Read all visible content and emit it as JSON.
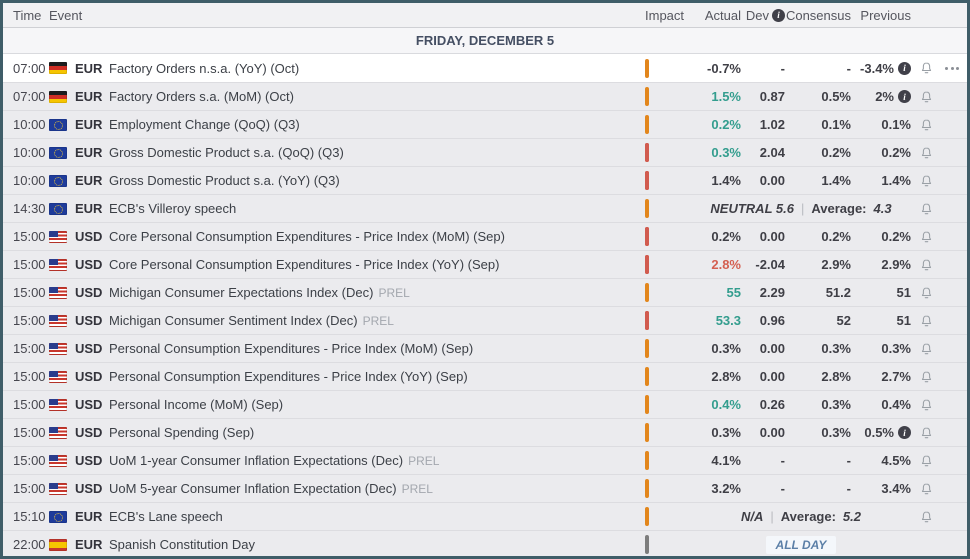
{
  "header": {
    "time": "Time",
    "event": "Event",
    "impact": "Impact",
    "actual": "Actual",
    "dev": "Dev",
    "consensus": "Consensus",
    "previous": "Previous"
  },
  "date_header": "FRIDAY, DECEMBER 5",
  "colors": {
    "impact_medium": "#e2861c",
    "impact_high": "#d15b4f",
    "actual_positive": "#339d8e",
    "actual_negative": "#d45f51",
    "frame_border": "#3f5d68"
  },
  "rows": [
    {
      "time": "07:00",
      "flag": "de",
      "currency": "EUR",
      "event": "Factory Orders n.s.a. (YoY) (Oct)",
      "impact": "medium",
      "actual": "-0.7%",
      "actual_tone": "neutral",
      "dev": "-",
      "consensus": "-",
      "previous": "-3.4%",
      "previous_info": true,
      "bell": true,
      "menu": true,
      "highlight": true
    },
    {
      "time": "07:00",
      "flag": "de",
      "currency": "EUR",
      "event": "Factory Orders s.a. (MoM) (Oct)",
      "impact": "medium",
      "actual": "1.5%",
      "actual_tone": "positive",
      "dev": "0.87",
      "consensus": "0.5%",
      "previous": "2%",
      "previous_info": true,
      "bell": true
    },
    {
      "time": "10:00",
      "flag": "eu",
      "currency": "EUR",
      "event": "Employment Change (QoQ) (Q3)",
      "impact": "medium",
      "actual": "0.2%",
      "actual_tone": "positive",
      "dev": "1.02",
      "consensus": "0.1%",
      "previous": "0.1%",
      "bell": true
    },
    {
      "time": "10:00",
      "flag": "eu",
      "currency": "EUR",
      "event": "Gross Domestic Product s.a. (QoQ) (Q3)",
      "impact": "high",
      "actual": "0.3%",
      "actual_tone": "positive",
      "dev": "2.04",
      "consensus": "0.2%",
      "previous": "0.2%",
      "bell": true
    },
    {
      "time": "10:00",
      "flag": "eu",
      "currency": "EUR",
      "event": "Gross Domestic Product s.a. (YoY) (Q3)",
      "impact": "high",
      "actual": "1.4%",
      "actual_tone": "neutral",
      "dev": "0.00",
      "consensus": "1.4%",
      "previous": "1.4%",
      "bell": true
    },
    {
      "time": "14:30",
      "flag": "eu",
      "currency": "EUR",
      "event": "ECB's Villeroy speech",
      "impact": "medium",
      "type": "speech",
      "speech_value": "NEUTRAL 5.6",
      "separator": "|",
      "average_label": "Average:",
      "average": "4.3",
      "bell": true
    },
    {
      "time": "15:00",
      "flag": "us",
      "currency": "USD",
      "event": "Core Personal Consumption Expenditures - Price Index (MoM) (Sep)",
      "impact": "high",
      "actual": "0.2%",
      "actual_tone": "neutral",
      "dev": "0.00",
      "consensus": "0.2%",
      "previous": "0.2%",
      "bell": true
    },
    {
      "time": "15:00",
      "flag": "us",
      "currency": "USD",
      "event": "Core Personal Consumption Expenditures - Price Index (YoY) (Sep)",
      "impact": "high",
      "actual": "2.8%",
      "actual_tone": "negative",
      "dev": "-2.04",
      "consensus": "2.9%",
      "previous": "2.9%",
      "bell": true
    },
    {
      "time": "15:00",
      "flag": "us",
      "currency": "USD",
      "event": "Michigan Consumer Expectations Index (Dec)",
      "prel": "PREL",
      "impact": "medium",
      "actual": "55",
      "actual_tone": "positive",
      "dev": "2.29",
      "consensus": "51.2",
      "previous": "51",
      "bell": true
    },
    {
      "time": "15:00",
      "flag": "us",
      "currency": "USD",
      "event": "Michigan Consumer Sentiment Index (Dec)",
      "prel": "PREL",
      "impact": "high",
      "actual": "53.3",
      "actual_tone": "positive",
      "dev": "0.96",
      "consensus": "52",
      "previous": "51",
      "bell": true
    },
    {
      "time": "15:00",
      "flag": "us",
      "currency": "USD",
      "event": "Personal Consumption Expenditures - Price Index (MoM) (Sep)",
      "impact": "medium",
      "actual": "0.3%",
      "actual_tone": "neutral",
      "dev": "0.00",
      "consensus": "0.3%",
      "previous": "0.3%",
      "bell": true
    },
    {
      "time": "15:00",
      "flag": "us",
      "currency": "USD",
      "event": "Personal Consumption Expenditures - Price Index (YoY) (Sep)",
      "impact": "medium",
      "actual": "2.8%",
      "actual_tone": "neutral",
      "dev": "0.00",
      "consensus": "2.8%",
      "previous": "2.7%",
      "bell": true
    },
    {
      "time": "15:00",
      "flag": "us",
      "currency": "USD",
      "event": "Personal Income (MoM) (Sep)",
      "impact": "medium",
      "actual": "0.4%",
      "actual_tone": "positive",
      "dev": "0.26",
      "consensus": "0.3%",
      "previous": "0.4%",
      "bell": true
    },
    {
      "time": "15:00",
      "flag": "us",
      "currency": "USD",
      "event": "Personal Spending (Sep)",
      "impact": "medium",
      "actual": "0.3%",
      "actual_tone": "neutral",
      "dev": "0.00",
      "consensus": "0.3%",
      "previous": "0.5%",
      "previous_info": true,
      "bell": true
    },
    {
      "time": "15:00",
      "flag": "us",
      "currency": "USD",
      "event": "UoM 1-year Consumer Inflation Expectations (Dec)",
      "prel": "PREL",
      "impact": "medium",
      "actual": "4.1%",
      "actual_tone": "neutral",
      "dev": "-",
      "consensus": "-",
      "previous": "4.5%",
      "bell": true
    },
    {
      "time": "15:00",
      "flag": "us",
      "currency": "USD",
      "event": "UoM 5-year Consumer Inflation Expectation (Dec)",
      "prel": "PREL",
      "impact": "medium",
      "actual": "3.2%",
      "actual_tone": "neutral",
      "dev": "-",
      "consensus": "-",
      "previous": "3.4%",
      "bell": true
    },
    {
      "time": "15:10",
      "flag": "eu",
      "currency": "EUR",
      "event": "ECB's Lane speech",
      "impact": "medium",
      "type": "speech",
      "speech_value": "N/A",
      "separator": "|",
      "average_label": "Average:",
      "average": "5.2",
      "bell": true
    },
    {
      "time": "22:00",
      "flag": "es",
      "currency": "EUR",
      "event": "Spanish Constitution Day",
      "impact": "none",
      "type": "holiday",
      "badge": "ALL DAY"
    }
  ]
}
